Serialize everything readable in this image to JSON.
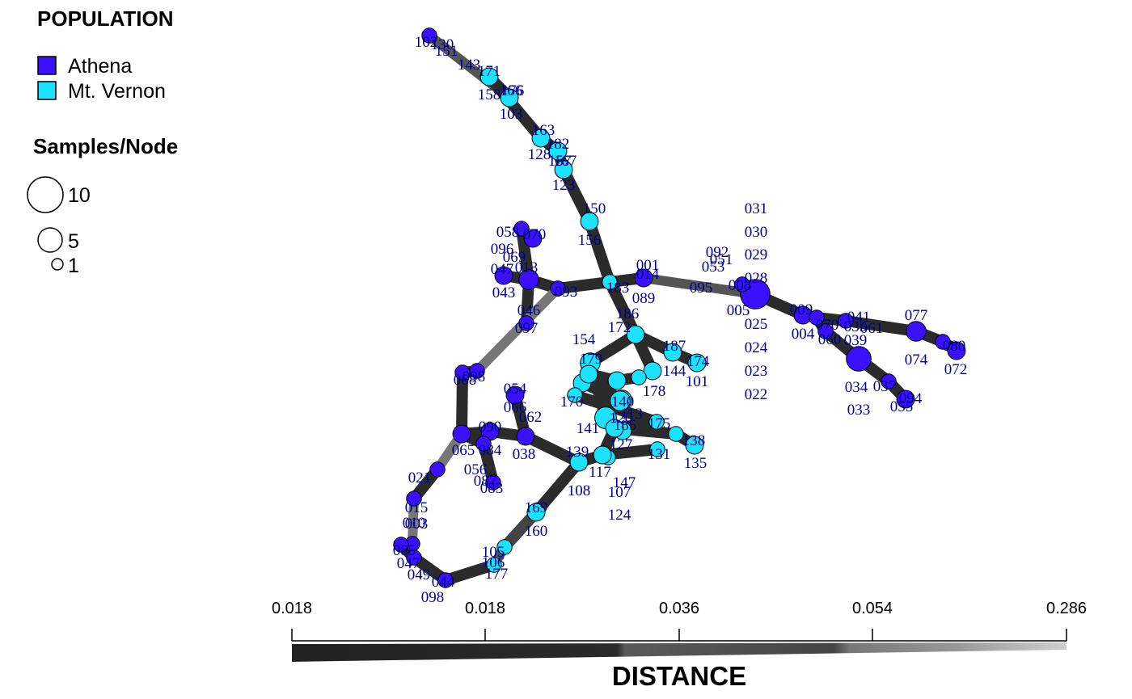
{
  "legend": {
    "population_title": "POPULATION",
    "populations": [
      {
        "name": "Athena",
        "color": "#3a10ff"
      },
      {
        "name": "Mt. Vernon",
        "color": "#1be3ff"
      }
    ],
    "size_title": "Samples/Node",
    "sizes": [
      {
        "label": "10",
        "value": 10
      },
      {
        "label": "5",
        "value": 5
      },
      {
        "label": "1",
        "value": 1
      }
    ]
  },
  "scale": {
    "title": "DISTANCE",
    "ticks": [
      "0.018",
      "0.018",
      "0.036",
      "0.054",
      "0.286"
    ]
  },
  "colors": {
    "athena": "#3a10ff",
    "mt_vernon": "#1be3ff",
    "edge_dark": "#2b2b2b",
    "label": "#00008b"
  },
  "nodes": [
    {
      "id": "Ahub",
      "pop": "athena",
      "n": 10
    },
    {
      "id": "A009",
      "pop": "athena",
      "n": 2
    },
    {
      "id": "A070",
      "pop": "athena",
      "n": 1
    },
    {
      "id": "A035",
      "pop": "athena",
      "n": 1
    },
    {
      "id": "A077",
      "pop": "athena",
      "n": 3
    },
    {
      "id": "A080",
      "pop": "athena",
      "n": 1
    },
    {
      "id": "A072",
      "pop": "athena",
      "n": 2
    },
    {
      "id": "A060",
      "pop": "athena",
      "n": 1
    },
    {
      "id": "A039",
      "pop": "athena",
      "n": 6
    },
    {
      "id": "A034",
      "pop": "athena",
      "n": 1
    },
    {
      "id": "A033",
      "pop": "athena",
      "n": 2
    },
    {
      "id": "A061",
      "pop": "athena",
      "n": 1
    },
    {
      "id": "M171",
      "pop": "mt_vernon",
      "n": 2
    },
    {
      "id": "M166",
      "pop": "mt_vernon",
      "n": 2
    },
    {
      "id": "M163",
      "pop": "mt_vernon",
      "n": 2
    },
    {
      "id": "M157",
      "pop": "mt_vernon",
      "n": 2
    },
    {
      "id": "M123",
      "pop": "mt_vernon",
      "n": 2
    },
    {
      "id": "M156",
      "pop": "mt_vernon",
      "n": 2
    },
    {
      "id": "M183",
      "pop": "mt_vernon",
      "n": 1
    },
    {
      "id": "A089",
      "pop": "athena",
      "n": 2
    },
    {
      "id": "A092",
      "pop": "athena",
      "n": 1
    },
    {
      "id": "A093",
      "pop": "athena",
      "n": 1
    },
    {
      "id": "A013",
      "pop": "athena",
      "n": 3
    },
    {
      "id": "A043",
      "pop": "athena",
      "n": 2
    },
    {
      "id": "A070b",
      "pop": "athena",
      "n": 2
    },
    {
      "id": "A058",
      "pop": "athena",
      "n": 1
    },
    {
      "id": "A046",
      "pop": "athena",
      "n": 1
    },
    {
      "id": "A097",
      "pop": "athena",
      "n": 1
    },
    {
      "id": "A068",
      "pop": "athena",
      "n": 1
    },
    {
      "id": "A090",
      "pop": "athena",
      "n": 2
    },
    {
      "id": "A065",
      "pop": "athena",
      "n": 2
    },
    {
      "id": "A084",
      "pop": "athena",
      "n": 1
    },
    {
      "id": "A093b",
      "pop": "athena",
      "n": 1
    },
    {
      "id": "A054",
      "pop": "athena",
      "n": 2
    },
    {
      "id": "A038",
      "pop": "athena",
      "n": 2
    },
    {
      "id": "A025",
      "pop": "athena",
      "n": 1
    },
    {
      "id": "A015",
      "pop": "athena",
      "n": 1
    },
    {
      "id": "A010",
      "pop": "athena",
      "n": 1
    },
    {
      "id": "A085",
      "pop": "athena",
      "n": 1
    },
    {
      "id": "A047",
      "pop": "athena",
      "n": 1
    },
    {
      "id": "A044",
      "pop": "athena",
      "n": 1
    },
    {
      "id": "M106",
      "pop": "mt_vernon",
      "n": 1
    },
    {
      "id": "M098",
      "pop": "mt_vernon",
      "n": 1
    },
    {
      "id": "M169",
      "pop": "mt_vernon",
      "n": 2
    },
    {
      "id": "M160",
      "pop": "mt_vernon",
      "n": 2
    },
    {
      "id": "M108",
      "pop": "mt_vernon",
      "n": 1
    },
    {
      "id": "M110",
      "pop": "mt_vernon",
      "n": 2
    },
    {
      "id": "M132",
      "pop": "mt_vernon",
      "n": 4
    },
    {
      "id": "M154",
      "pop": "mt_vernon",
      "n": 2
    },
    {
      "id": "M147",
      "pop": "mt_vernon",
      "n": 3
    },
    {
      "id": "M179",
      "pop": "mt_vernon",
      "n": 2
    },
    {
      "id": "M174",
      "pop": "mt_vernon",
      "n": 2
    },
    {
      "id": "M101",
      "pop": "mt_vernon",
      "n": 2
    },
    {
      "id": "M138",
      "pop": "mt_vernon",
      "n": 2
    },
    {
      "id": "M144",
      "pop": "mt_vernon",
      "n": 1
    },
    {
      "id": "M135",
      "pop": "mt_vernon",
      "n": 1
    },
    {
      "id": "M124",
      "pop": "mt_vernon",
      "n": 2
    },
    {
      "id": "M139",
      "pop": "mt_vernon",
      "n": 2
    },
    {
      "id": "M120",
      "pop": "mt_vernon",
      "n": 3
    },
    {
      "id": "M150",
      "pop": "mt_vernon",
      "n": 2
    },
    {
      "id": "M140",
      "pop": "mt_vernon",
      "n": 3
    },
    {
      "id": "M141",
      "pop": "mt_vernon",
      "n": 2
    },
    {
      "id": "M145",
      "pop": "mt_vernon",
      "n": 2
    },
    {
      "id": "M127",
      "pop": "mt_vernon",
      "n": 1
    },
    {
      "id": "M175",
      "pop": "mt_vernon",
      "n": 1
    },
    {
      "id": "M142",
      "pop": "mt_vernon",
      "n": 1
    }
  ],
  "edges": [
    {
      "from": "M166",
      "to": "A092",
      "shade": "#555555",
      "w": 12
    },
    {
      "from": "M166",
      "to": "M171",
      "shade": "#2b2b2b",
      "w": 14
    },
    {
      "from": "M171",
      "to": "M163",
      "shade": "#2b2b2b",
      "w": 14
    },
    {
      "from": "M163",
      "to": "M157",
      "shade": "#2b2b2b",
      "w": 14
    },
    {
      "from": "M157",
      "to": "M123",
      "shade": "#2b2b2b",
      "w": 14
    },
    {
      "from": "M123",
      "to": "M156",
      "shade": "#2b2b2b",
      "w": 14
    },
    {
      "from": "M156",
      "to": "M183",
      "shade": "#2b2b2b",
      "w": 14
    },
    {
      "from": "M183",
      "to": "A093",
      "shade": "#2b2b2b",
      "w": 14
    },
    {
      "from": "A093",
      "to": "A013",
      "shade": "#2b2b2b",
      "w": 14
    },
    {
      "from": "A013",
      "to": "A043",
      "shade": "#2b2b2b",
      "w": 14
    },
    {
      "from": "A013",
      "to": "A058",
      "shade": "#2b2b2b",
      "w": 14
    },
    {
      "from": "A013",
      "to": "A046",
      "shade": "#2b2b2b",
      "w": 14
    },
    {
      "from": "M183",
      "to": "A089",
      "shade": "#2b2b2b",
      "w": 14
    },
    {
      "from": "A089",
      "to": "Ahub",
      "shade": "#555555",
      "w": 12
    },
    {
      "from": "Ahub",
      "to": "A061",
      "shade": "#2b2b2b",
      "w": 14
    },
    {
      "from": "Ahub",
      "to": "A009",
      "shade": "#2b2b2b",
      "w": 14
    },
    {
      "from": "A009",
      "to": "A070",
      "shade": "#2b2b2b",
      "w": 14
    },
    {
      "from": "A070",
      "to": "A035",
      "shade": "#2b2b2b",
      "w": 14
    },
    {
      "from": "A035",
      "to": "A077",
      "shade": "#2b2b2b",
      "w": 14
    },
    {
      "from": "A077",
      "to": "A080",
      "shade": "#2b2b2b",
      "w": 14
    },
    {
      "from": "A080",
      "to": "A072",
      "shade": "#2b2b2b",
      "w": 14
    },
    {
      "from": "A070",
      "to": "A060",
      "shade": "#2b2b2b",
      "w": 14
    },
    {
      "from": "A060",
      "to": "A039",
      "shade": "#2b2b2b",
      "w": 14
    },
    {
      "from": "A039",
      "to": "A034",
      "shade": "#2b2b2b",
      "w": 14
    },
    {
      "from": "A034",
      "to": "A033",
      "shade": "#2b2b2b",
      "w": 14
    },
    {
      "from": "A093",
      "to": "A097",
      "shade": "#777777",
      "w": 12
    },
    {
      "from": "A097",
      "to": "A068",
      "shade": "#2b2b2b",
      "w": 14
    },
    {
      "from": "A068",
      "to": "A065",
      "shade": "#2b2b2b",
      "w": 14
    },
    {
      "from": "A065",
      "to": "A090",
      "shade": "#2b2b2b",
      "w": 14
    },
    {
      "from": "A090",
      "to": "A038",
      "shade": "#2b2b2b",
      "w": 14
    },
    {
      "from": "A054",
      "to": "A038",
      "shade": "#2b2b2b",
      "w": 14
    },
    {
      "from": "A065",
      "to": "A084",
      "shade": "#2b2b2b",
      "w": 14
    },
    {
      "from": "A084",
      "to": "A093b",
      "shade": "#2b2b2b",
      "w": 14
    },
    {
      "from": "A065",
      "to": "A025",
      "shade": "#777777",
      "w": 12
    },
    {
      "from": "A025",
      "to": "A015",
      "shade": "#2b2b2b",
      "w": 14
    },
    {
      "from": "A015",
      "to": "A010",
      "shade": "#777777",
      "w": 12
    },
    {
      "from": "A010",
      "to": "A085",
      "shade": "#555555",
      "w": 12
    },
    {
      "from": "A085",
      "to": "A047",
      "shade": "#2b2b2b",
      "w": 14
    },
    {
      "from": "A047",
      "to": "A044",
      "shade": "#2b2b2b",
      "w": 14
    },
    {
      "from": "A044",
      "to": "M106",
      "shade": "#2b2b2b",
      "w": 14
    },
    {
      "from": "M106",
      "to": "M098",
      "shade": "#555555",
      "w": 12
    },
    {
      "from": "M098",
      "to": "M169",
      "shade": "#444444",
      "w": 14
    },
    {
      "from": "M169",
      "to": "M160",
      "shade": "#2b2b2b",
      "w": 14
    },
    {
      "from": "A038",
      "to": "M160",
      "shade": "#2b2b2b",
      "w": 14
    },
    {
      "from": "M160",
      "to": "M110",
      "shade": "#2b2b2b",
      "w": 14
    },
    {
      "from": "M110",
      "to": "M108",
      "shade": "#2b2b2b",
      "w": 14
    },
    {
      "from": "M110",
      "to": "M135",
      "shade": "#2b2b2b",
      "w": 14
    },
    {
      "from": "M110",
      "to": "M139",
      "shade": "#2b2b2b",
      "w": 14
    },
    {
      "from": "M139",
      "to": "M132",
      "shade": "#2b2b2b",
      "w": 14
    },
    {
      "from": "M132",
      "to": "M124",
      "shade": "#2b2b2b",
      "w": 14
    },
    {
      "from": "M132",
      "to": "M147",
      "shade": "#2b2b2b",
      "w": 14
    },
    {
      "from": "M147",
      "to": "M154",
      "shade": "#2b2b2b",
      "w": 14
    },
    {
      "from": "M154",
      "to": "M183",
      "shade": "#2b2b2b",
      "w": 14
    },
    {
      "from": "M154",
      "to": "M179",
      "shade": "#2b2b2b",
      "w": 14
    },
    {
      "from": "M179",
      "to": "M174",
      "shade": "#2b2b2b",
      "w": 14
    },
    {
      "from": "M154",
      "to": "M101",
      "shade": "#2b2b2b",
      "w": 14
    },
    {
      "from": "M139",
      "to": "M144",
      "shade": "#2b2b2b",
      "w": 14
    },
    {
      "from": "M144",
      "to": "M138",
      "shade": "#2b2b2b",
      "w": 14
    },
    {
      "from": "M132",
      "to": "M120",
      "shade": "#2b2b2b",
      "w": 14
    },
    {
      "from": "M120",
      "to": "M150",
      "shade": "#2b2b2b",
      "w": 14
    },
    {
      "from": "M132",
      "to": "M140",
      "shade": "#2b2b2b",
      "w": 14
    },
    {
      "from": "M140",
      "to": "M141",
      "shade": "#2b2b2b",
      "w": 14
    },
    {
      "from": "M141",
      "to": "M145",
      "shade": "#2b2b2b",
      "w": 14
    },
    {
      "from": "M145",
      "to": "M127",
      "shade": "#2b2b2b",
      "w": 14
    },
    {
      "from": "M139",
      "to": "M175",
      "shade": "#2b2b2b",
      "w": 14
    },
    {
      "from": "M175",
      "to": "M142",
      "shade": "#2b2b2b",
      "w": 14
    }
  ],
  "labels": [
    {
      "text": "102"
    },
    {
      "text": "130"
    },
    {
      "text": "151"
    },
    {
      "text": "143"
    },
    {
      "text": "171"
    },
    {
      "text": "158"
    },
    {
      "text": "176"
    },
    {
      "text": "166"
    },
    {
      "text": "103"
    },
    {
      "text": "163"
    },
    {
      "text": "182"
    },
    {
      "text": "128"
    },
    {
      "text": "167"
    },
    {
      "text": "157"
    },
    {
      "text": "123"
    },
    {
      "text": "150"
    },
    {
      "text": "156"
    },
    {
      "text": "183"
    },
    {
      "text": "186"
    },
    {
      "text": "172"
    },
    {
      "text": "031"
    },
    {
      "text": "030"
    },
    {
      "text": "029"
    },
    {
      "text": "028"
    },
    {
      "text": "092"
    },
    {
      "text": "051"
    },
    {
      "text": "053"
    },
    {
      "text": "095"
    },
    {
      "text": "008"
    },
    {
      "text": "005"
    },
    {
      "text": "025"
    },
    {
      "text": "024"
    },
    {
      "text": "023"
    },
    {
      "text": "022"
    },
    {
      "text": "009"
    },
    {
      "text": "004"
    },
    {
      "text": "070"
    },
    {
      "text": "035"
    },
    {
      "text": "041"
    },
    {
      "text": "039"
    },
    {
      "text": "060"
    },
    {
      "text": "077"
    },
    {
      "text": "074"
    },
    {
      "text": "080"
    },
    {
      "text": "072"
    },
    {
      "text": "061"
    },
    {
      "text": "034"
    },
    {
      "text": "037"
    },
    {
      "text": "033"
    },
    {
      "text": "094"
    },
    {
      "text": "055"
    },
    {
      "text": "001"
    },
    {
      "text": "089"
    },
    {
      "text": "014"
    },
    {
      "text": "093"
    },
    {
      "text": "058"
    },
    {
      "text": "070"
    },
    {
      "text": "096"
    },
    {
      "text": "069"
    },
    {
      "text": "047"
    },
    {
      "text": "043"
    },
    {
      "text": "013"
    },
    {
      "text": "046"
    },
    {
      "text": "097"
    },
    {
      "text": "068"
    },
    {
      "text": "098"
    },
    {
      "text": "054"
    },
    {
      "text": "066"
    },
    {
      "text": "062"
    },
    {
      "text": "090"
    },
    {
      "text": "065"
    },
    {
      "text": "084"
    },
    {
      "text": "038"
    },
    {
      "text": "056"
    },
    {
      "text": "087"
    },
    {
      "text": "083"
    },
    {
      "text": "021"
    },
    {
      "text": "015"
    },
    {
      "text": "010"
    },
    {
      "text": "003"
    },
    {
      "text": "085"
    },
    {
      "text": "047"
    },
    {
      "text": "049"
    },
    {
      "text": "044"
    },
    {
      "text": "098"
    },
    {
      "text": "105"
    },
    {
      "text": "106"
    },
    {
      "text": "177"
    },
    {
      "text": "169"
    },
    {
      "text": "160"
    },
    {
      "text": "108"
    },
    {
      "text": "107"
    },
    {
      "text": "124"
    },
    {
      "text": "147"
    },
    {
      "text": "154"
    },
    {
      "text": "179"
    },
    {
      "text": "187"
    },
    {
      "text": "174"
    },
    {
      "text": "101"
    },
    {
      "text": "178"
    },
    {
      "text": "144"
    },
    {
      "text": "138"
    },
    {
      "text": "135"
    },
    {
      "text": "131"
    },
    {
      "text": "170"
    },
    {
      "text": "139"
    },
    {
      "text": "141"
    },
    {
      "text": "185"
    },
    {
      "text": "140"
    },
    {
      "text": "113"
    },
    {
      "text": "127"
    },
    {
      "text": "117"
    },
    {
      "text": "175"
    },
    {
      "text": "120"
    }
  ]
}
